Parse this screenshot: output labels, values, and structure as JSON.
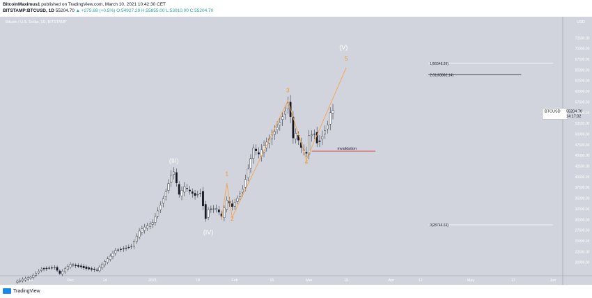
{
  "header": {
    "author": "BitcoinMaximus1",
    "published": " published on TradingView.com, March 10, 2021 10:42:30 CET",
    "symbol": "BITSTAMP:BTCUSD, 1D",
    "price": "55204.70",
    "change": "▲ +275.68 (+0.5%)",
    "ohlc": "O:54927.29 H:55855.00 L:53010.00 C:55204.70"
  },
  "footer": {
    "brand": "TradingView"
  },
  "colors": {
    "background": "#d1d4dc",
    "candle_body": "#ffffff",
    "candle_border": "#131722",
    "wave_line": "#f7a34a",
    "wave_label_minor": "#f7931a",
    "wave_label_major": "#ffffff",
    "invalidation": "#e53935",
    "fib_line": "#ffffff",
    "fib_target_line": "#131722"
  },
  "chart_data": {
    "type": "candlestick",
    "title": "Bitcoin / U.S. Dollar, 1D, BITSTAMP",
    "currency": "USD",
    "x_axis": {
      "labels": [
        {
          "label": "16",
          "date": "2020-11-16"
        },
        {
          "label": "Dec",
          "date": "2020-12-01"
        },
        {
          "label": "14",
          "date": "2020-12-14"
        },
        {
          "label": "2021",
          "date": "2021-01-01"
        },
        {
          "label": "18",
          "date": "2021-01-18"
        },
        {
          "label": "Feb",
          "date": "2021-02-01"
        },
        {
          "label": "15",
          "date": "2021-02-15"
        },
        {
          "label": "Mar",
          "date": "2021-03-01"
        },
        {
          "label": "15",
          "date": "2021-03-15"
        },
        {
          "label": "Apr",
          "date": "2021-04-01"
        },
        {
          "label": "12",
          "date": "2021-04-12"
        },
        {
          "label": "May",
          "date": "2021-05-01"
        },
        {
          "label": "17",
          "date": "2021-05-17"
        },
        {
          "label": "Jun",
          "date": "2021-06-01"
        }
      ]
    },
    "y_axis": {
      "min": 17500,
      "max": 75000,
      "ticks": [
        "20000.00",
        "22500.00",
        "25000.00",
        "27500.00",
        "30000.00",
        "32500.00",
        "35000.00",
        "37500.00",
        "40000.00",
        "42500.00",
        "45000.00",
        "47500.00",
        "50000.00",
        "52500.00",
        "55000.00",
        "57500.00",
        "60000.00",
        "62500.00",
        "65000.00",
        "67500.00",
        "70000.00",
        "72500.00"
      ]
    },
    "price_label": {
      "symbol": "BTCUSD",
      "value": "55204.70",
      "countdown": "14:17:32"
    },
    "price_path": [
      [
        "2020-11-10",
        15300
      ],
      [
        "2020-11-16",
        16400
      ],
      [
        "2020-11-20",
        18600
      ],
      [
        "2020-11-25",
        18800
      ],
      [
        "2020-11-27",
        17200
      ],
      [
        "2020-12-01",
        19400
      ],
      [
        "2020-12-05",
        19100
      ],
      [
        "2020-12-11",
        18000
      ],
      [
        "2020-12-16",
        21300
      ],
      [
        "2020-12-18",
        22900
      ],
      [
        "2020-12-24",
        23800
      ],
      [
        "2020-12-27",
        27000
      ],
      [
        "2021-01-01",
        29300
      ],
      [
        "2021-01-06",
        36800
      ],
      [
        "2021-01-08",
        40500
      ],
      [
        "2021-01-09",
        41000
      ],
      [
        "2021-01-11",
        35500
      ],
      [
        "2021-01-13",
        37300
      ],
      [
        "2021-01-15",
        36500
      ],
      [
        "2021-01-17",
        35800
      ],
      [
        "2021-01-19",
        36600
      ],
      [
        "2021-01-21",
        30500
      ],
      [
        "2021-01-22",
        32500
      ],
      [
        "2021-01-25",
        32300
      ],
      [
        "2021-01-27",
        30400
      ],
      [
        "2021-01-29",
        34300
      ],
      [
        "2021-01-31",
        33100
      ],
      [
        "2021-02-04",
        37500
      ],
      [
        "2021-02-08",
        46500
      ],
      [
        "2021-02-10",
        44800
      ],
      [
        "2021-02-14",
        48800
      ],
      [
        "2021-02-17",
        52100
      ],
      [
        "2021-02-20",
        55900
      ],
      [
        "2021-02-21",
        57500
      ],
      [
        "2021-02-22",
        54000
      ],
      [
        "2021-02-23",
        48800
      ],
      [
        "2021-02-24",
        49700
      ],
      [
        "2021-02-26",
        46300
      ],
      [
        "2021-02-28",
        45200
      ],
      [
        "2021-03-01",
        49600
      ],
      [
        "2021-03-03",
        50400
      ],
      [
        "2021-03-04",
        48400
      ],
      [
        "2021-03-05",
        48800
      ],
      [
        "2021-03-07",
        51200
      ],
      [
        "2021-03-08",
        52300
      ],
      [
        "2021-03-09",
        54900
      ],
      [
        "2021-03-10",
        55204.7
      ]
    ],
    "wave_labels": [
      {
        "label": "(III)",
        "date": "2021-01-09",
        "price": 43200,
        "kind": "major"
      },
      {
        "label": "(IV)",
        "date": "2021-01-22",
        "price": 26500,
        "kind": "major"
      },
      {
        "label": "(V)",
        "date": "2021-03-14",
        "price": 69800,
        "kind": "major"
      },
      {
        "label": "1",
        "date": "2021-01-29",
        "price": 40200,
        "kind": "minor"
      },
      {
        "label": "2",
        "date": "2021-01-31",
        "price": 29700,
        "kind": "minor"
      },
      {
        "label": "3",
        "date": "2021-02-21",
        "price": 59800,
        "kind": "minor"
      },
      {
        "label": "4",
        "date": "2021-02-28",
        "price": 43000,
        "kind": "minor"
      },
      {
        "label": "5",
        "date": "2021-03-15",
        "price": 67200,
        "kind": "minor"
      }
    ],
    "wave_path": [
      [
        "2021-01-27",
        30000
      ],
      [
        "2021-01-29",
        38500
      ],
      [
        "2021-01-31",
        30500
      ],
      [
        "2021-02-21",
        57800
      ],
      [
        "2021-02-28",
        44000
      ],
      [
        "2021-03-15",
        65500
      ]
    ],
    "fib_levels": [
      {
        "label": "1(66548.89)",
        "value": 66548.89,
        "from": "2021-04-15",
        "to": "2021-06-01"
      },
      {
        "label": "2.61(63882.14)",
        "value": 63882.14,
        "from": "2021-04-15",
        "to": "2021-05-20"
      },
      {
        "label": "0(28746.69)",
        "value": 28746.69,
        "from": "2021-04-15",
        "to": "2021-06-01"
      }
    ],
    "invalidation": {
      "label": "invalidation",
      "value": 46000,
      "from": "2021-03-02",
      "to": "2021-03-26"
    }
  }
}
